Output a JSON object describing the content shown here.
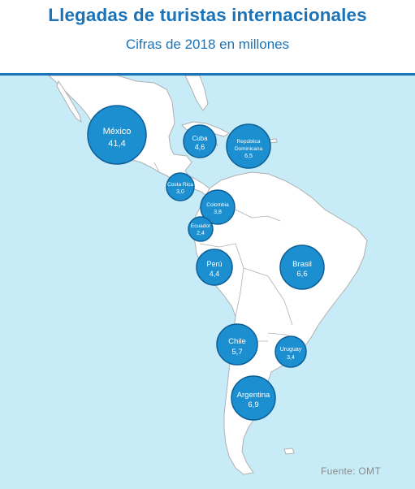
{
  "header": {
    "title": "Llegadas de turistas internacionales",
    "subtitle": "Cifras de 2018 en millones"
  },
  "source": "Fuente: OMT",
  "colors": {
    "accent": "#1a73b8",
    "ocean": "#c7ecf8",
    "land": "#ffffff",
    "border": "#b0b0b0",
    "bubble_fill": "#1b8fd0",
    "bubble_stroke": "#0f5f97",
    "bubble_text": "#ffffff"
  },
  "countries": [
    {
      "name": "México",
      "value": "41,4"
    },
    {
      "name": "Cuba",
      "value": "4,6"
    },
    {
      "name": "República Dominicana",
      "value": "6,5"
    },
    {
      "name": "Costa Rica",
      "value": "3,0"
    },
    {
      "name": "Colombia",
      "value": "3,8"
    },
    {
      "name": "Ecuador",
      "value": "2,4"
    },
    {
      "name": "Perú",
      "value": "4,4"
    },
    {
      "name": "Brasil",
      "value": "6,6"
    },
    {
      "name": "Chile",
      "value": "5,7"
    },
    {
      "name": "Uruguay",
      "value": "3,4"
    },
    {
      "name": "Argentina",
      "value": "6,9"
    }
  ]
}
